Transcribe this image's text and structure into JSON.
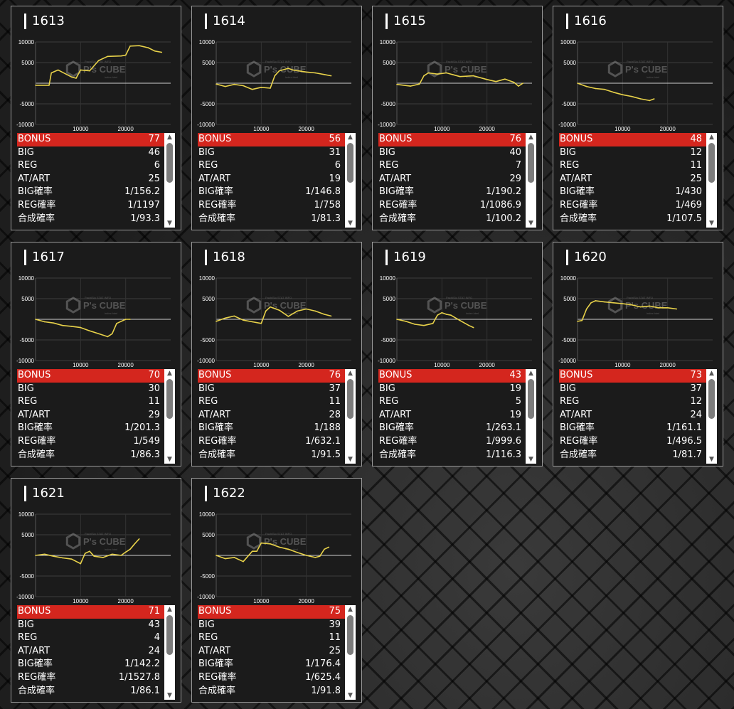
{
  "colors": {
    "bonus_bg": "#d4261e",
    "line": "#e8d24a",
    "card_bg": "#1b1b1b"
  },
  "watermark": {
    "brand": "P's CUBE",
    "small_top": "PachiSlo STAT INFO",
    "small_bottom": "index.html"
  },
  "axis": {
    "y_ticks": [
      "10000",
      "5000",
      "-5000",
      "-10000"
    ],
    "x_ticks": [
      "10000",
      "20000"
    ]
  },
  "labels": {
    "bonus": "BONUS",
    "big": "BIG",
    "reg": "REG",
    "atart": "AT/ART",
    "big_rate": "BIG確率",
    "reg_rate": "REG確率",
    "total_rate": "合成確率"
  },
  "machines": [
    {
      "id": "1613",
      "bonus": "77",
      "big": "46",
      "reg": "6",
      "atart": "25",
      "big_rate": "1/156.2",
      "reg_rate": "1/1197",
      "total_rate": "1/93.3"
    },
    {
      "id": "1614",
      "bonus": "56",
      "big": "31",
      "reg": "6",
      "atart": "19",
      "big_rate": "1/146.8",
      "reg_rate": "1/758",
      "total_rate": "1/81.3"
    },
    {
      "id": "1615",
      "bonus": "76",
      "big": "40",
      "reg": "7",
      "atart": "29",
      "big_rate": "1/190.2",
      "reg_rate": "1/1086.9",
      "total_rate": "1/100.2"
    },
    {
      "id": "1616",
      "bonus": "48",
      "big": "12",
      "reg": "11",
      "atart": "25",
      "big_rate": "1/430",
      "reg_rate": "1/469",
      "total_rate": "1/107.5"
    },
    {
      "id": "1617",
      "bonus": "70",
      "big": "30",
      "reg": "11",
      "atart": "29",
      "big_rate": "1/201.3",
      "reg_rate": "1/549",
      "total_rate": "1/86.3"
    },
    {
      "id": "1618",
      "bonus": "76",
      "big": "37",
      "reg": "11",
      "atart": "28",
      "big_rate": "1/188",
      "reg_rate": "1/632.1",
      "total_rate": "1/91.5"
    },
    {
      "id": "1619",
      "bonus": "43",
      "big": "19",
      "reg": "5",
      "atart": "19",
      "big_rate": "1/263.1",
      "reg_rate": "1/999.6",
      "total_rate": "1/116.3"
    },
    {
      "id": "1620",
      "bonus": "73",
      "big": "37",
      "reg": "12",
      "atart": "24",
      "big_rate": "1/161.1",
      "reg_rate": "1/496.5",
      "total_rate": "1/81.7"
    },
    {
      "id": "1621",
      "bonus": "71",
      "big": "43",
      "reg": "4",
      "atart": "24",
      "big_rate": "1/142.2",
      "reg_rate": "1/1527.8",
      "total_rate": "1/86.1"
    },
    {
      "id": "1622",
      "bonus": "75",
      "big": "39",
      "reg": "11",
      "atart": "25",
      "big_rate": "1/176.4",
      "reg_rate": "1/625.4",
      "total_rate": "1/91.8"
    }
  ],
  "chart_data": [
    {
      "type": "line",
      "machine": "1613",
      "xlim": [
        0,
        30000
      ],
      "ylim": [
        -10000,
        10000
      ],
      "x": [
        0,
        3000,
        3500,
        5000,
        8000,
        9000,
        10000,
        12000,
        14000,
        16000,
        19000,
        20000,
        21000,
        23000,
        25000,
        26500,
        28000
      ],
      "y": [
        -500,
        -500,
        2500,
        3200,
        1500,
        1200,
        3200,
        3000,
        5500,
        6500,
        6600,
        6800,
        9000,
        9100,
        8600,
        7800,
        7500
      ]
    },
    {
      "type": "line",
      "machine": "1614",
      "xlim": [
        0,
        30000
      ],
      "ylim": [
        -10000,
        10000
      ],
      "x": [
        0,
        2000,
        4000,
        6000,
        8000,
        10000,
        12000,
        13000,
        14000,
        16000,
        17000,
        20000,
        22000,
        24000,
        25500
      ],
      "y": [
        -200,
        -800,
        -300,
        -600,
        -1500,
        -1000,
        -1200,
        1800,
        3000,
        3600,
        3200,
        2700,
        2500,
        2100,
        1800
      ]
    },
    {
      "type": "line",
      "machine": "1615",
      "xlim": [
        0,
        30000
      ],
      "ylim": [
        -10000,
        10000
      ],
      "x": [
        0,
        3000,
        5000,
        6000,
        7000,
        9000,
        11000,
        14000,
        17000,
        20000,
        22000,
        24000,
        26000,
        27000,
        28000
      ],
      "y": [
        -300,
        -700,
        -200,
        1800,
        2500,
        2200,
        2500,
        1600,
        1800,
        900,
        400,
        1000,
        200,
        -700,
        0
      ]
    },
    {
      "type": "line",
      "machine": "1616",
      "xlim": [
        0,
        30000
      ],
      "ylim": [
        -10000,
        10000
      ],
      "x": [
        0,
        2000,
        4000,
        6000,
        8000,
        10000,
        12000,
        14000,
        16000,
        17000
      ],
      "y": [
        0,
        -800,
        -1300,
        -1500,
        -2200,
        -2800,
        -3200,
        -3800,
        -4200,
        -3800
      ]
    },
    {
      "type": "line",
      "machine": "1617",
      "xlim": [
        0,
        30000
      ],
      "ylim": [
        -10000,
        10000
      ],
      "x": [
        0,
        2000,
        4000,
        6000,
        8000,
        10000,
        12000,
        14000,
        16000,
        17000,
        18000,
        20000,
        21000
      ],
      "y": [
        0,
        -600,
        -900,
        -1500,
        -1700,
        -2000,
        -2800,
        -3500,
        -4200,
        -3500,
        -1000,
        0,
        0
      ]
    },
    {
      "type": "line",
      "machine": "1618",
      "xlim": [
        0,
        30000
      ],
      "ylim": [
        -10000,
        10000
      ],
      "x": [
        0,
        2000,
        4000,
        6000,
        8000,
        10000,
        11000,
        12000,
        14000,
        16000,
        18000,
        20000,
        22000,
        24000,
        25500
      ],
      "y": [
        -500,
        300,
        800,
        -200,
        -600,
        -1000,
        2000,
        3000,
        2200,
        700,
        2000,
        2500,
        2000,
        1200,
        800
      ]
    },
    {
      "type": "line",
      "machine": "1619",
      "xlim": [
        0,
        30000
      ],
      "ylim": [
        -10000,
        10000
      ],
      "x": [
        0,
        2000,
        4000,
        6000,
        8000,
        8500,
        9000,
        10000,
        11000,
        12000,
        14000,
        16000,
        17000
      ],
      "y": [
        0,
        -500,
        -1200,
        -1500,
        -1000,
        0,
        1000,
        1600,
        1200,
        1000,
        -300,
        -1500,
        -2000
      ]
    },
    {
      "type": "line",
      "machine": "1620",
      "xlim": [
        0,
        30000
      ],
      "ylim": [
        -10000,
        10000
      ],
      "x": [
        0,
        1000,
        2000,
        3000,
        4000,
        6000,
        8000,
        10000,
        12000,
        14000,
        16000,
        18000,
        20000,
        22000
      ],
      "y": [
        -500,
        -300,
        2500,
        4000,
        4500,
        4200,
        4000,
        3800,
        3500,
        3000,
        3200,
        2800,
        2800,
        2500
      ]
    },
    {
      "type": "line",
      "machine": "1621",
      "xlim": [
        0,
        30000
      ],
      "ylim": [
        -10000,
        10000
      ],
      "x": [
        0,
        2000,
        4000,
        6000,
        8000,
        10000,
        11000,
        12000,
        13000,
        15000,
        17000,
        19000,
        20000,
        21000,
        22000,
        23000
      ],
      "y": [
        0,
        300,
        -200,
        -600,
        -900,
        -2000,
        500,
        1000,
        -200,
        -500,
        300,
        0,
        800,
        1500,
        2800,
        4000
      ]
    },
    {
      "type": "line",
      "machine": "1622",
      "xlim": [
        0,
        30000
      ],
      "ylim": [
        -10000,
        10000
      ],
      "x": [
        0,
        2000,
        4000,
        6000,
        8000,
        9000,
        10000,
        12000,
        14000,
        16000,
        18000,
        20000,
        22000,
        23000,
        24000,
        25000
      ],
      "y": [
        0,
        -800,
        -500,
        -1500,
        1000,
        1000,
        3000,
        2800,
        2000,
        1500,
        700,
        0,
        -500,
        -200,
        1500,
        2000
      ]
    }
  ]
}
